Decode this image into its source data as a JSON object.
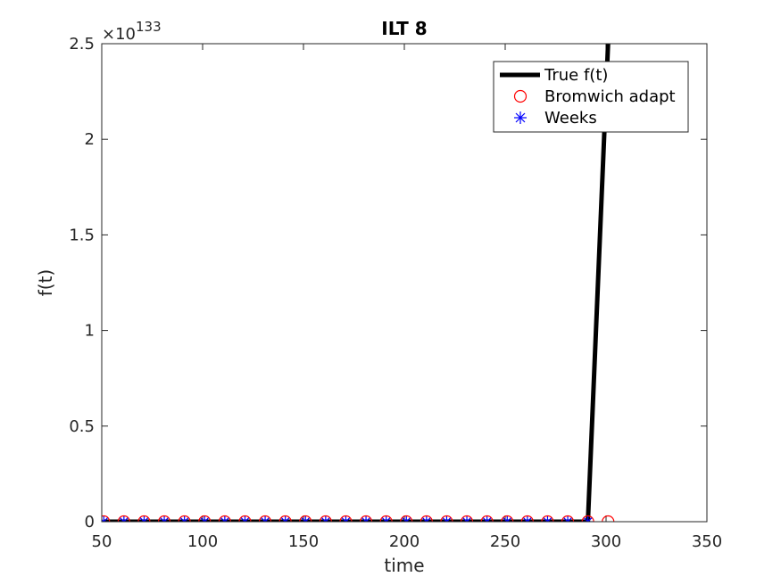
{
  "chart_data": {
    "type": "line",
    "title": "ILT 8",
    "xlabel": "time",
    "ylabel": "f(t)",
    "xlim": [
      50,
      350
    ],
    "ylim": [
      0,
      2.5
    ],
    "xticks": [
      50,
      100,
      150,
      200,
      250,
      300,
      350
    ],
    "yticks": [
      0,
      0.5,
      1,
      1.5,
      2,
      2.5
    ],
    "y_tick_labels": [
      "0",
      "0.5",
      "1",
      "1.5",
      "2",
      "2.5"
    ],
    "y_exponent": {
      "base": "×10",
      "power": "133"
    },
    "legend_position": "top-right",
    "grid": false,
    "series": [
      {
        "name": "True f(t)",
        "style": "line",
        "color": "#000000",
        "x": [
          51,
          61,
          71,
          81,
          91,
          101,
          111,
          121,
          131,
          141,
          151,
          161,
          171,
          181,
          191,
          201,
          211,
          221,
          231,
          241,
          251,
          261,
          271,
          281,
          291,
          301
        ],
        "y": [
          0,
          0,
          0,
          0,
          0,
          0,
          0,
          0,
          0,
          0,
          0,
          0,
          0,
          0,
          0,
          0,
          0,
          0,
          0,
          0,
          0,
          0,
          0,
          0,
          0,
          2.5
        ]
      },
      {
        "name": "Bromwich adapt",
        "style": "circle",
        "color": "#ff0000",
        "x": [
          51,
          61,
          71,
          81,
          91,
          101,
          111,
          121,
          131,
          141,
          151,
          161,
          171,
          181,
          191,
          201,
          211,
          221,
          231,
          241,
          251,
          261,
          271,
          281,
          291,
          301
        ],
        "y": [
          0,
          0,
          0,
          0,
          0,
          0,
          0,
          0,
          0,
          0,
          0,
          0,
          0,
          0,
          0,
          0,
          0,
          0,
          0,
          0,
          0,
          0,
          0,
          0,
          0,
          0
        ]
      },
      {
        "name": "Weeks",
        "style": "asterisk",
        "color": "#0000ff",
        "x": [
          51,
          61,
          71,
          81,
          91,
          101,
          111,
          121,
          131,
          141,
          151,
          161,
          171,
          181,
          191,
          201,
          211,
          221,
          231,
          241,
          251,
          261,
          271,
          281,
          291
        ],
        "y": [
          0,
          0,
          0,
          0,
          0,
          0,
          0,
          0,
          0,
          0,
          0,
          0,
          0,
          0,
          0,
          0,
          0,
          0,
          0,
          0,
          0,
          0,
          0,
          0,
          0
        ]
      }
    ]
  }
}
